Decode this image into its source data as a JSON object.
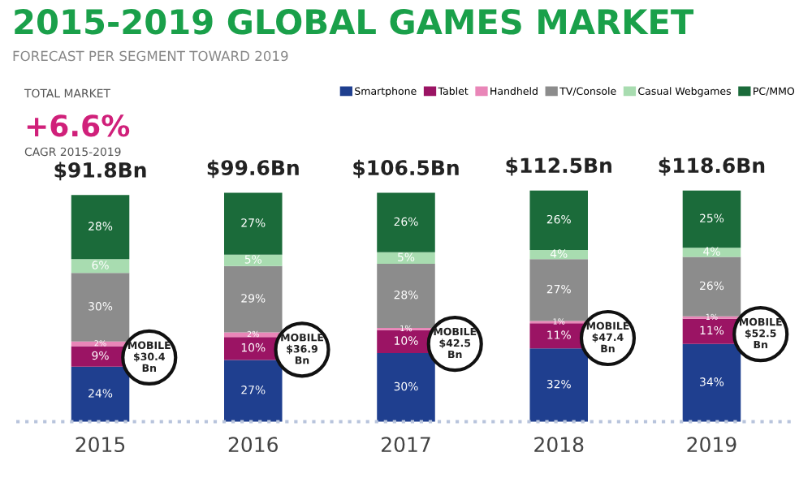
{
  "chart_data": {
    "type": "bar",
    "stacked": true,
    "title": "2015-2019 GLOBAL GAMES MARKET",
    "subtitle": "FORECAST PER SEGMENT TOWARD 2019",
    "categories": [
      "2015",
      "2016",
      "2017",
      "2018",
      "2019"
    ],
    "series": [
      {
        "name": "Smartphone",
        "color": "#1f3f8f",
        "values": [
          24,
          27,
          30,
          32,
          34
        ],
        "value_labels": [
          "24%",
          "27%",
          "30%",
          "32%",
          "34%"
        ]
      },
      {
        "name": "Tablet",
        "color": "#9b1464",
        "values": [
          9,
          10,
          10,
          11,
          11
        ],
        "value_labels": [
          "9%",
          "10%",
          "10%",
          "11%",
          "11%"
        ]
      },
      {
        "name": "Handheld",
        "color": "#e986b8",
        "values": [
          2,
          2,
          1,
          1,
          1
        ],
        "value_labels": [
          "2%",
          "2%",
          "1%",
          "1%",
          "1%"
        ]
      },
      {
        "name": "TV/Console",
        "color": "#8c8c8c",
        "values": [
          30,
          29,
          28,
          27,
          26
        ],
        "value_labels": [
          "30%",
          "29%",
          "28%",
          "27%",
          "26%"
        ]
      },
      {
        "name": "Casual Webgames",
        "color": "#a8dcb0",
        "values": [
          6,
          5,
          5,
          4,
          4
        ],
        "value_labels": [
          "6%",
          "5%",
          "5%",
          "4%",
          "4%"
        ]
      },
      {
        "name": "PC/MMO",
        "color": "#1b6b3a",
        "values": [
          28,
          27,
          26,
          26,
          25
        ],
        "value_labels": [
          "28%",
          "27%",
          "26%",
          "26%",
          "25%"
        ]
      }
    ],
    "annotations": [
      {
        "text": "$91.8Bn",
        "x": "2015",
        "y": 99
      },
      {
        "text": "$99.6Bn",
        "x": "2016",
        "y": 100
      },
      {
        "text": "$106.5Bn",
        "x": "2017",
        "y": 100
      },
      {
        "text": "$112.5Bn",
        "x": "2018",
        "y": 101
      },
      {
        "text": "$118.6Bn",
        "x": "2019",
        "y": 101
      },
      "TOTAL MARKET",
      "+6.6%",
      "CAGR 2015-2019",
      "MOBILE\n$30.4\nBn",
      "MOBILE\n$36.9\nBn",
      "MOBILE\n$42.5\nBn",
      "MOBILE\n$47.4\nBn",
      "MOBILE\n$52.5\nBn"
    ],
    "ref_lines": [
      {
        "axis": "y",
        "value": 0,
        "color": "#b8c4dc",
        "line_style": "dotted"
      }
    ],
    "tick_labels": "x",
    "legend": "top right",
    "grid": false
  }
}
